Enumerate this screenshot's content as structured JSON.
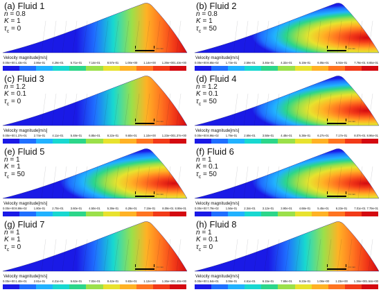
{
  "legend_label": "Velocity magnitude[m/s]",
  "scale_label": "0.1 mm",
  "colorbar_colors": [
    "#1a1ae6",
    "#1f6fff",
    "#21b2ff",
    "#18d8d0",
    "#2cd68a",
    "#9be04a",
    "#e8e22e",
    "#ffb225",
    "#ff7420",
    "#f23a18",
    "#d40a10"
  ],
  "panels": [
    {
      "title": "(a) Fluid 1",
      "n": "0.8",
      "K": "1",
      "tau": "0",
      "peak": "right",
      "ticks": [
        "0.00e+00",
        "1.43e-01",
        "2.86e-01",
        "4.29e-01",
        "5.71e-01",
        "7.14e-01",
        "8.57e-01",
        "1.00e+00",
        "1.14e+00",
        "1.29e+00",
        "1.43e+00"
      ]
    },
    {
      "title": "(b) Fluid 2",
      "n": "0.8",
      "K": "1",
      "tau": "50",
      "peak": "center",
      "ticks": [
        "0.00e+00",
        "8.65e-02",
        "1.73e-01",
        "2.59e-01",
        "3.46e-01",
        "4.32e-01",
        "5.19e-01",
        "6.05e-01",
        "6.92e-01",
        "7.78e-01",
        "8.65e-01"
      ]
    },
    {
      "title": "(c) Fluid 3",
      "n": "1.2",
      "K": "0.1",
      "tau": "0",
      "peak": "right",
      "ticks": [
        "0.00e+00",
        "1.37e-01",
        "2.74e-01",
        "4.11e-01",
        "5.48e-01",
        "6.85e-01",
        "8.22e-01",
        "9.60e-01",
        "1.10e+00",
        "1.23e+00",
        "1.37e+00"
      ]
    },
    {
      "title": "(d) Fluid 4",
      "n": "1.2",
      "K": "0.1",
      "tau": "50",
      "peak": "center",
      "ticks": [
        "0.00e+00",
        "8.96e-02",
        "1.79e-01",
        "2.69e-01",
        "3.58e-01",
        "4.48e-01",
        "5.38e-01",
        "6.27e-01",
        "7.17e-01",
        "8.07e-01",
        "8.96e-01"
      ]
    },
    {
      "title": "(e) Fluid 5",
      "n": "1",
      "K": "1",
      "tau": "50",
      "peak": "center",
      "ticks": [
        "0.00e+00",
        "8.99e-02",
        "1.80e-01",
        "2.70e-01",
        "3.60e-01",
        "4.50e-01",
        "5.39e-01",
        "6.29e-01",
        "7.19e-01",
        "8.09e-01",
        "8.99e-01"
      ]
    },
    {
      "title": "(f) Fluid 6",
      "n": "1",
      "K": "0.1",
      "tau": "50",
      "peak": "center",
      "ticks": [
        "0.00e+00",
        "7.79e-02",
        "1.56e-01",
        "2.34e-01",
        "3.12e-01",
        "3.90e-01",
        "4.68e-01",
        "5.45e-01",
        "6.23e-01",
        "7.01e-01",
        "7.79e-01"
      ]
    },
    {
      "title": "(g) Fluid 7",
      "n": "1",
      "K": "1",
      "tau": "0",
      "peak": "right",
      "ticks": [
        "0.00e+00",
        "1.40e-01",
        "2.81e-01",
        "4.21e-01",
        "5.62e-01",
        "7.02e-01",
        "8.42e-01",
        "9.83e-01",
        "1.12e+00",
        "1.26e+00",
        "1.40e+00"
      ]
    },
    {
      "title": "(h) Fluid 8",
      "n": "1",
      "K": "0.1",
      "tau": "0",
      "peak": "right",
      "ticks": [
        "0.00e+00",
        "1.54e-01",
        "3.08e-01",
        "4.61e-01",
        "6.15e-01",
        "7.69e-01",
        "9.23e-01",
        "1.08e+00",
        "1.23e+00",
        "1.38e+00",
        "1.54e+00"
      ]
    }
  ]
}
